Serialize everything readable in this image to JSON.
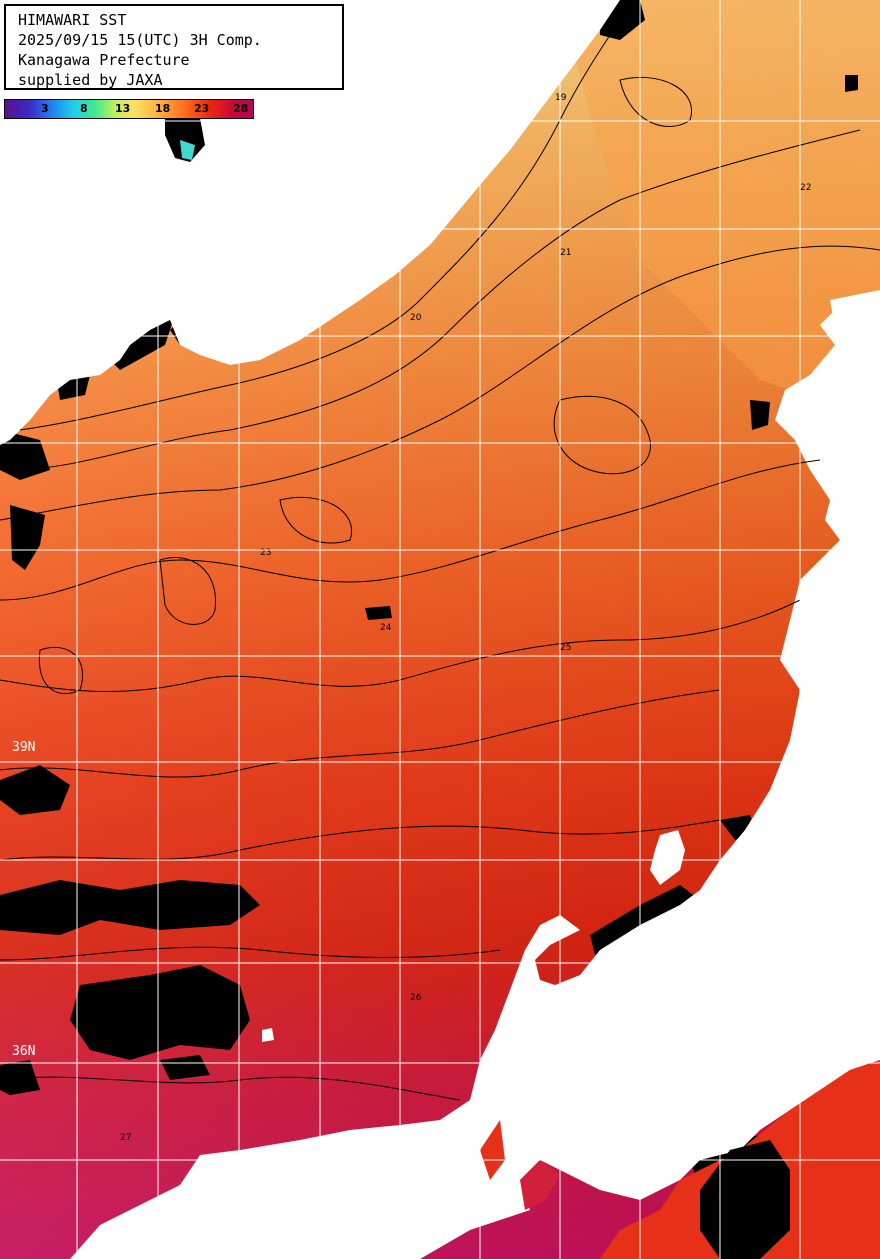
{
  "header": {
    "line1": "HIMAWARI SST",
    "line2": "2025/09/15 15(UTC) 3H Comp.",
    "line3": "Kanagawa Prefecture",
    "line4": "supplied by JAXA"
  },
  "colorbar": {
    "ticks": [
      "3",
      "8",
      "13",
      "18",
      "23",
      "28"
    ]
  },
  "grid_labels": {
    "lat_39": "39N",
    "lat_36": "36N"
  },
  "contour_labels": [
    "19",
    "20",
    "21",
    "22",
    "23",
    "24",
    "25",
    "26",
    "27"
  ],
  "colors": {
    "sst_18": "#fcc870",
    "sst_20": "#f8a850",
    "sst_22": "#f87832",
    "sst_24": "#f04a18",
    "sst_26": "#d8200e",
    "sst_28": "#c00c48",
    "land": "#ffffff",
    "cloud": "#000000",
    "grid": "#ffffff",
    "contour": "#000000"
  }
}
